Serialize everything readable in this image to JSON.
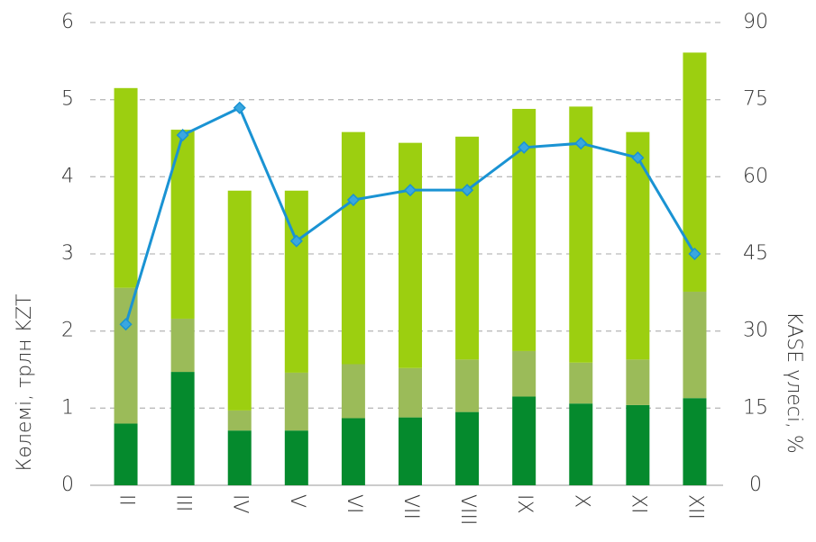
{
  "chart_data": {
    "type": "bar",
    "y_label": "Көлемі, трлн KZT",
    "y2_label": "KASE үлесі, %",
    "categories": [
      "II",
      "III",
      "IV",
      "V",
      "VI",
      "VII",
      "VIII",
      "IX",
      "X",
      "XI",
      "XII"
    ],
    "stacked": true,
    "series": [
      {
        "color": "#058a2d",
        "values": [
          0.8,
          1.47,
          0.71,
          0.71,
          0.87,
          0.88,
          0.95,
          1.15,
          1.06,
          1.04,
          1.13
        ]
      },
      {
        "color": "#9bbb59",
        "values": [
          1.76,
          0.69,
          0.26,
          0.75,
          0.7,
          0.64,
          0.68,
          0.59,
          0.53,
          0.59,
          1.38
        ]
      },
      {
        "color": "#9ccf10",
        "values": [
          2.59,
          2.45,
          2.85,
          2.36,
          3.01,
          2.92,
          2.89,
          3.14,
          3.32,
          2.95,
          3.1
        ]
      },
      {
        "type": "line",
        "axis": "y2",
        "color": "#1a93d3",
        "values": [
          31.3,
          68.1,
          73.4,
          47.5,
          55.5,
          57.4,
          57.4,
          65.7,
          66.5,
          63.7,
          45.0
        ]
      }
    ],
    "ylim": [
      0,
      6
    ],
    "yticks": [
      0,
      1,
      2,
      3,
      4,
      5,
      6
    ],
    "y2lim": [
      0,
      90
    ],
    "y2ticks": [
      0,
      15,
      30,
      45,
      60,
      75,
      90
    ],
    "grid": true
  }
}
